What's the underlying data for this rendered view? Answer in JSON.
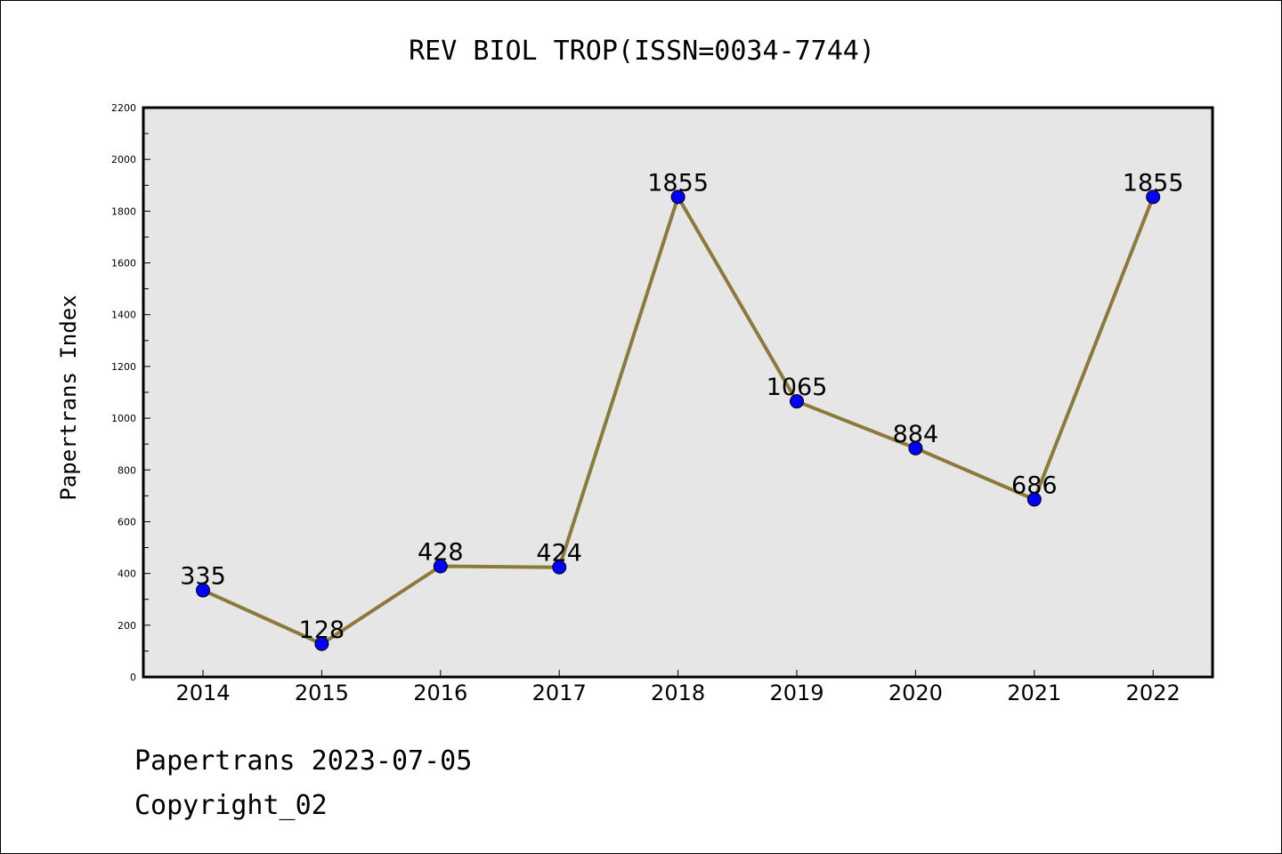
{
  "footer": {
    "line1": "Papertrans 2023-07-05",
    "line2": "Copyright_02"
  },
  "colors": {
    "plot_background": "#e6e6e6",
    "line": "#8c7a3a",
    "marker": "#0000ff",
    "axis": "#000000"
  },
  "chart_data": {
    "type": "line",
    "title": "REV BIOL TROP(ISSN=0034-7744)",
    "xlabel": "",
    "ylabel": "Papertrans Index",
    "x": [
      "2014",
      "2015",
      "2016",
      "2017",
      "2018",
      "2019",
      "2020",
      "2021",
      "2022"
    ],
    "series": [
      {
        "values": [
          335,
          128,
          428,
          424,
          1855,
          1065,
          884,
          686,
          1855
        ]
      }
    ],
    "ylim": [
      0,
      2200
    ],
    "yticks": [
      0,
      200,
      400,
      600,
      800,
      1000,
      1200,
      1400,
      1600,
      1800,
      2000,
      2200
    ],
    "grid": false,
    "legend": "none",
    "data_labels": true
  }
}
